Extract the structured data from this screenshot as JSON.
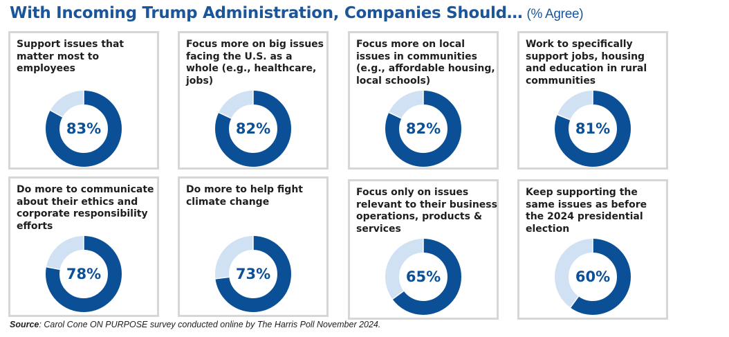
{
  "title": "With Incoming Trump Administration, Companies Should…",
  "title_suffix": "(% Agree)",
  "source_label": "Source",
  "source_text": ": Carol Cone ON PURPOSE survey conducted online by The Harris Poll November 2024.",
  "colors": {
    "primary": "#0b5096",
    "light": "#d0e1f4",
    "text": "#1e1e1e",
    "title": "#1a5699",
    "border": "#d6d6d6"
  },
  "chart_data": {
    "type": "pie",
    "variant": "donut-grid",
    "unit": "%",
    "items": [
      {
        "label": "Support issues that matter most to employees",
        "value": 83,
        "display": "83%"
      },
      {
        "label": "Focus more on big issues facing the U.S. as a whole (e.g., healthcare, jobs)",
        "value": 82,
        "display": "82%"
      },
      {
        "label": "Focus more on local issues in communities (e.g., affordable housing, local schools)",
        "value": 82,
        "display": "82%"
      },
      {
        "label": "Work to specifically support jobs, housing and education in rural communities",
        "value": 81,
        "display": "81%"
      },
      {
        "label": "Do more to communicate about their ethics and corporate responsibility efforts",
        "value": 78,
        "display": "78%"
      },
      {
        "label": "Do more to help fight climate change",
        "value": 73,
        "display": "73%"
      },
      {
        "label": "Focus only on issues relevant to their business operations, products & services",
        "value": 65,
        "display": "65%"
      },
      {
        "label": "Keep supporting the same issues as before the 2024 presidential election",
        "value": 60,
        "display": "60%"
      }
    ]
  }
}
